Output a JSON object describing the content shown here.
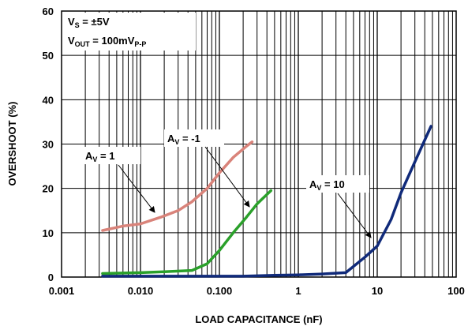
{
  "chart_data": {
    "type": "line",
    "xlabel": "LOAD CAPACITANCE (nF)",
    "ylabel": "OVERSHOOT (%)",
    "xscale": "log",
    "xlim": [
      0.001,
      100
    ],
    "ylim": [
      0,
      60
    ],
    "grid": true,
    "x_tick_labels": [
      "0.001",
      "0.010",
      "0.100",
      "1",
      "10",
      "100"
    ],
    "y_tick_labels": [
      "0",
      "10",
      "20",
      "30",
      "40",
      "50",
      "60"
    ],
    "conditions": [
      {
        "main": "V",
        "sub": "S",
        "rest": " = ±5V",
        "sub2": ""
      },
      {
        "main": "V",
        "sub": "OUT",
        "rest": " = 100mV",
        "sub2": "P-P"
      }
    ],
    "series": [
      {
        "label_main": "A",
        "label_sub": "V",
        "label_rest": " = 1",
        "color": "#d9837a",
        "x": [
          0.0033,
          0.006,
          0.01,
          0.018,
          0.03,
          0.045,
          0.07,
          0.1,
          0.15,
          0.22,
          0.26
        ],
        "y": [
          10.5,
          11.5,
          12,
          13.5,
          15,
          17,
          20,
          23.5,
          27,
          29.5,
          30.5
        ]
      },
      {
        "label_main": "A",
        "label_sub": "V",
        "label_rest": " = -1",
        "color": "#2aa02a",
        "x": [
          0.0033,
          0.01,
          0.02,
          0.045,
          0.07,
          0.1,
          0.15,
          0.22,
          0.3,
          0.45
        ],
        "y": [
          0.8,
          1.0,
          1.2,
          1.5,
          3,
          6,
          10,
          13.5,
          16.5,
          19.5
        ]
      },
      {
        "label_main": "A",
        "label_sub": "V",
        "label_rest": " = 10",
        "color": "#102a7a",
        "x": [
          0.0033,
          0.01,
          0.1,
          0.2,
          0.5,
          1,
          2,
          4,
          7,
          10,
          15,
          20,
          30,
          48
        ],
        "y": [
          0.2,
          0.2,
          0.2,
          0.2,
          0.4,
          0.5,
          0.7,
          1.0,
          4.5,
          7,
          13,
          19,
          26,
          34
        ]
      }
    ]
  }
}
